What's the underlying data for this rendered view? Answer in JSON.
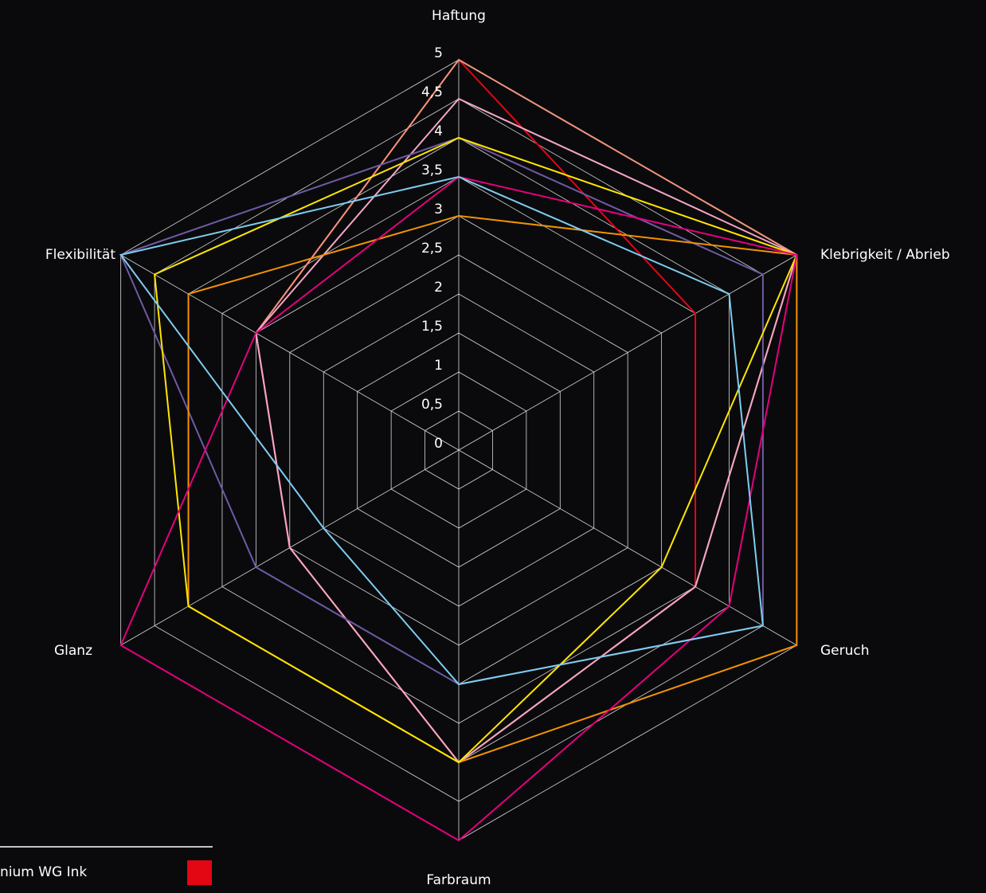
{
  "chart_data": {
    "type": "radar",
    "categories": [
      "Haftung",
      "Klebrigkeit / Abrieb",
      "Geruch",
      "Farbraum",
      "Glanz",
      "Flexibilität"
    ],
    "rlim": [
      0,
      5
    ],
    "rticks": [
      0,
      {
        "value": 0.5,
        "label": "0,5"
      },
      1,
      {
        "value": 1.5,
        "label": "1,5"
      },
      2,
      {
        "value": 2.5,
        "label": "2,5"
      },
      3,
      {
        "value": 3.5,
        "label": "3,5"
      },
      4,
      {
        "value": 4.5,
        "label": "4,5"
      },
      5
    ],
    "grid": true,
    "series": [
      {
        "name": "nium WG Ink",
        "color": "#e30613",
        "values": [
          5,
          3.5,
          3.5,
          4,
          2.5,
          3
        ]
      },
      {
        "color": "#f0957c",
        "values": [
          5,
          5,
          3.5,
          4,
          2.5,
          3
        ]
      },
      {
        "color": "#f4a6c4",
        "values": [
          4.5,
          5,
          3.5,
          4,
          2.5,
          3
        ]
      },
      {
        "color": "#6f5aa3",
        "values": [
          4,
          4.5,
          4.5,
          3,
          3,
          5
        ]
      },
      {
        "color": "#f39200",
        "values": [
          3,
          5,
          5,
          4,
          4,
          4
        ]
      },
      {
        "color": "#ffe600",
        "values": [
          4,
          5,
          3,
          4,
          4,
          4.5
        ]
      },
      {
        "color": "#e5007d",
        "values": [
          3.5,
          5,
          4,
          5,
          5,
          3
        ]
      },
      {
        "color": "#7ecdf0",
        "values": [
          3.5,
          4,
          4.5,
          3,
          2,
          5
        ]
      }
    ]
  }
}
